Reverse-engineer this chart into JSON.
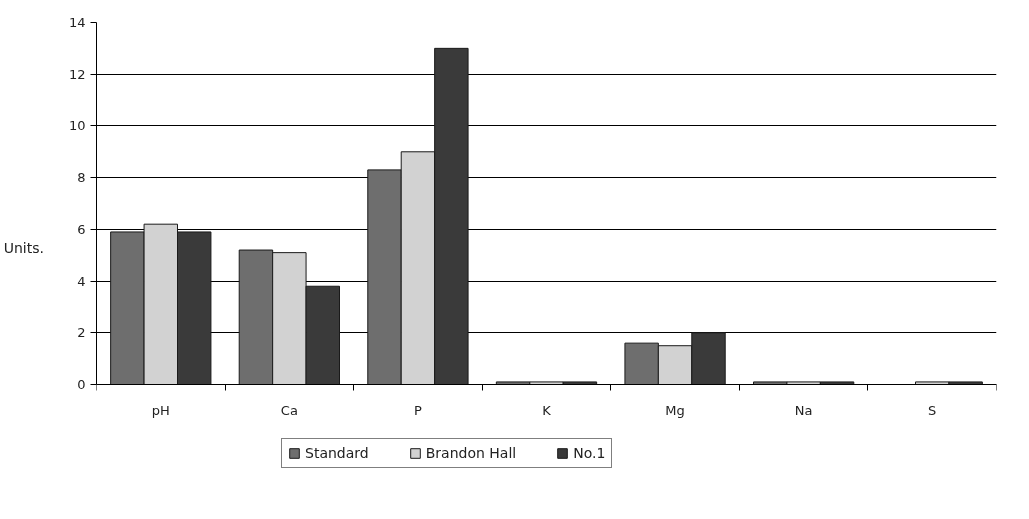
{
  "chart_data": {
    "type": "bar",
    "ylabel": "Units.",
    "categories": [
      "pH",
      "Ca",
      "P",
      "K",
      "Mg",
      "Na",
      "S"
    ],
    "series": [
      {
        "name": "Standard",
        "color": "#6e6e6e",
        "values": [
          5.9,
          5.2,
          8.3,
          0.1,
          1.6,
          0.1,
          null
        ]
      },
      {
        "name": "Brandon Hall",
        "color": "#d2d2d2",
        "values": [
          6.2,
          5.1,
          9.0,
          0.1,
          1.5,
          0.1,
          0.1
        ]
      },
      {
        "name": "No.1",
        "color": "#3a3a3a",
        "values": [
          5.9,
          3.8,
          13.0,
          0.1,
          2.0,
          0.1,
          0.1
        ]
      }
    ],
    "ylim": [
      0,
      14
    ],
    "yticks": [
      0,
      2,
      4,
      6,
      8,
      10,
      12,
      14
    ],
    "grid": "y",
    "legend": "bottom"
  }
}
